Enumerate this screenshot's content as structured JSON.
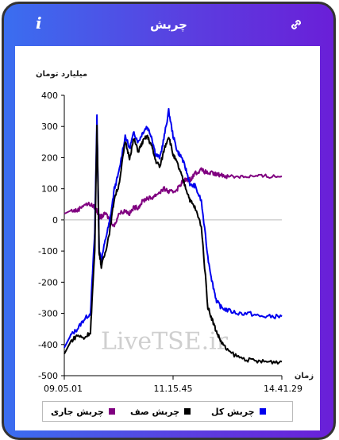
{
  "header": {
    "title": "چربش",
    "info_label": "i",
    "title_color": "#ffffff"
  },
  "chart_data": {
    "type": "line",
    "ylabel": "میلیارد تومان",
    "xlabel": "زمان",
    "ylim": [
      -500,
      400
    ],
    "yticks": [
      400,
      300,
      200,
      100,
      0,
      -100,
      -200,
      -300,
      -400,
      -500
    ],
    "ytick_labels": [
      "400",
      "300",
      "200",
      "100",
      "0",
      "-100",
      "-200",
      "-300",
      "-400",
      "-500"
    ],
    "x_tick_labels": [
      "09.05.01",
      "11.15.45",
      "14.41.29"
    ],
    "x_tick_positions": [
      0,
      0.5,
      1
    ],
    "zero_line": true,
    "watermark": "LiveTSE.ir",
    "x": [
      0,
      0.03,
      0.06,
      0.09,
      0.12,
      0.14,
      0.15,
      0.16,
      0.17,
      0.19,
      0.21,
      0.23,
      0.25,
      0.28,
      0.3,
      0.32,
      0.34,
      0.36,
      0.38,
      0.4,
      0.42,
      0.44,
      0.46,
      0.48,
      0.5,
      0.52,
      0.54,
      0.56,
      0.58,
      0.6,
      0.63,
      0.66,
      0.68,
      0.7,
      0.72,
      0.75,
      0.8,
      0.85,
      0.9,
      0.95,
      1.0
    ],
    "series": [
      {
        "name": "چربش کل",
        "color": "#0000ee",
        "values": [
          -410,
          -370,
          -350,
          -320,
          -300,
          -40,
          330,
          -90,
          -130,
          -60,
          0,
          100,
          150,
          270,
          230,
          280,
          250,
          280,
          300,
          270,
          210,
          200,
          270,
          350,
          270,
          220,
          200,
          160,
          110,
          110,
          60,
          -120,
          -200,
          -260,
          -280,
          -290,
          -300,
          -300,
          -310,
          -310,
          -310
        ]
      },
      {
        "name": "چربش صف",
        "color": "#000000",
        "values": [
          -430,
          -390,
          -370,
          -380,
          -360,
          -100,
          310,
          -100,
          -150,
          -100,
          -30,
          70,
          110,
          250,
          200,
          260,
          220,
          250,
          270,
          240,
          190,
          170,
          230,
          270,
          210,
          180,
          140,
          100,
          60,
          40,
          -20,
          -280,
          -320,
          -360,
          -390,
          -420,
          -440,
          -450,
          -455,
          -455,
          -455
        ]
      },
      {
        "name": "چربش جاری",
        "color": "#800080",
        "values": [
          20,
          30,
          30,
          50,
          50,
          40,
          30,
          10,
          10,
          20,
          0,
          -20,
          20,
          30,
          20,
          40,
          40,
          60,
          70,
          70,
          80,
          90,
          100,
          90,
          90,
          100,
          120,
          130,
          130,
          150,
          160,
          150,
          150,
          145,
          145,
          140,
          140,
          140,
          140,
          140,
          140
        ]
      }
    ],
    "legend_order": [
      "چربش جاری",
      "چربش صف",
      "چربش کل"
    ]
  }
}
